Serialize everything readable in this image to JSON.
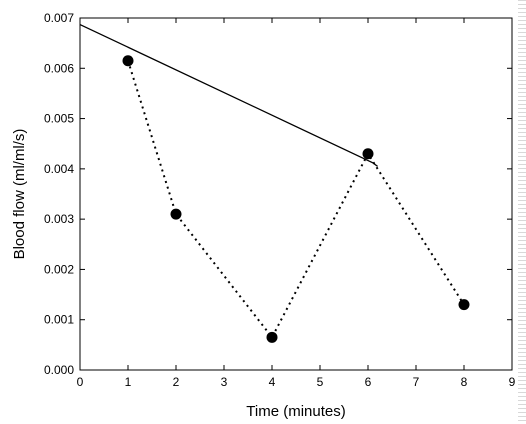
{
  "chart_data": {
    "type": "scatter",
    "xlabel": "Time (minutes)",
    "ylabel": "Blood flow (ml/ml/s)",
    "xlim": [
      0,
      9
    ],
    "ylim": [
      0,
      0.007
    ],
    "x_ticks": [
      "0",
      "1",
      "2",
      "3",
      "4",
      "5",
      "6",
      "7",
      "8",
      "9"
    ],
    "y_ticks": [
      "0.000",
      "0.001",
      "0.002",
      "0.003",
      "0.004",
      "0.005",
      "0.006",
      "0.007"
    ],
    "grid": false,
    "series": [
      {
        "style": "markers-dotted",
        "color": "#000000",
        "x": [
          1,
          2,
          4,
          6,
          8
        ],
        "y": [
          0.00615,
          0.0031,
          0.00065,
          0.0043,
          0.0013
        ]
      },
      {
        "style": "solid-line",
        "color": "#000000",
        "x": [
          0,
          6.1,
          6.2
        ],
        "y": [
          0.00687,
          0.00412,
          0.00405
        ]
      }
    ]
  }
}
